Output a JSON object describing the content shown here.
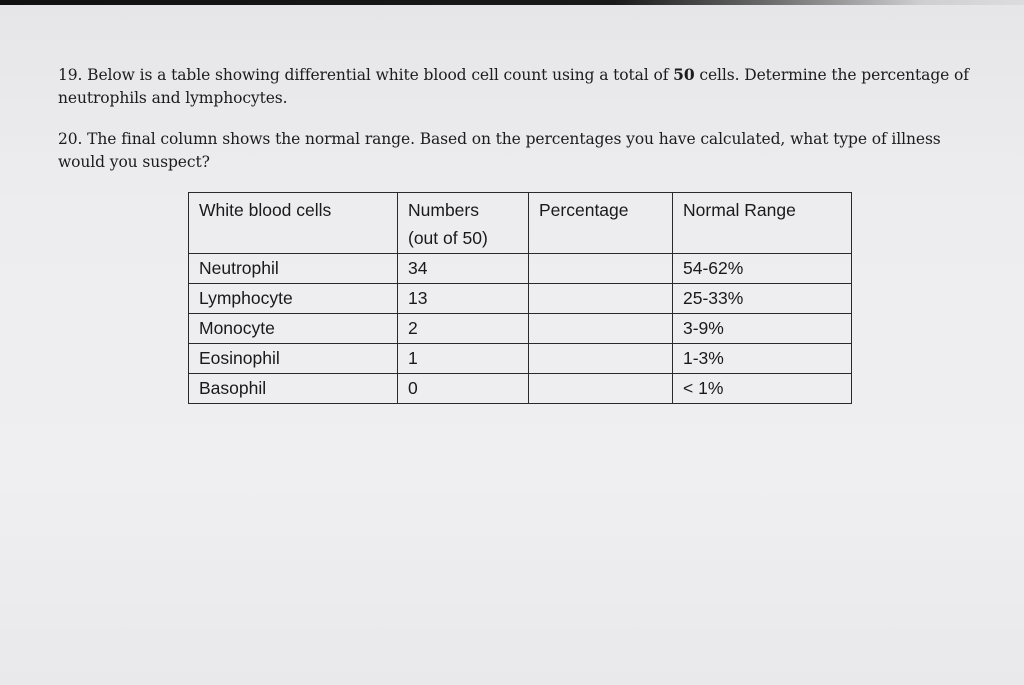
{
  "questions": {
    "q19": {
      "prefix": "19. Below is a table showing differential white blood cell count using a total of ",
      "bold": "50",
      "suffix": " cells. Determine the percentage of neutrophils and lymphocytes."
    },
    "q20": {
      "text": "20. The final column shows the normal range. Based on the percentages you have calculated, what type of illness would you suspect?"
    }
  },
  "table": {
    "headers": {
      "cells": "White blood cells",
      "numbers_line1": "Numbers",
      "numbers_line2": "(out of 50)",
      "percentage": "Percentage",
      "normal_range": "Normal Range"
    },
    "rows": [
      {
        "cell": "Neutrophil",
        "number": "34",
        "percentage": "",
        "range": "54-62%"
      },
      {
        "cell": "Lymphocyte",
        "number": "13",
        "percentage": "",
        "range": "25-33%"
      },
      {
        "cell": "Monocyte",
        "number": "2",
        "percentage": "",
        "range": "3-9%"
      },
      {
        "cell": "Eosinophil",
        "number": "1",
        "percentage": "",
        "range": "1-3%"
      },
      {
        "cell": "Basophil",
        "number": "0",
        "percentage": "",
        "range": "< 1%"
      }
    ]
  }
}
